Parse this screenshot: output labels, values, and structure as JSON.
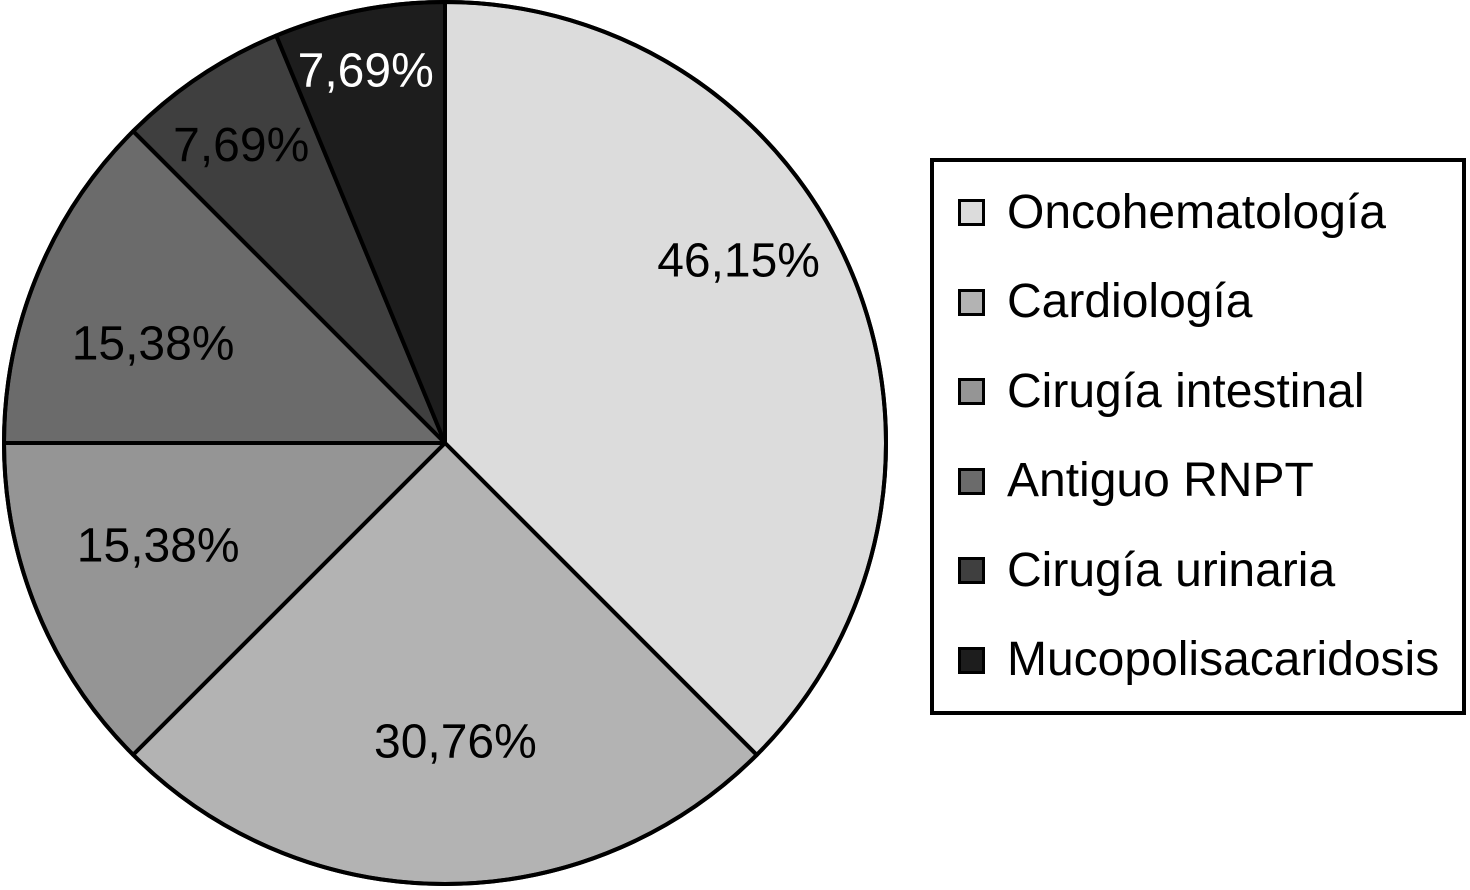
{
  "chart_data": {
    "type": "pie",
    "title": "",
    "legend_position": "right",
    "background_color": "#ffffff",
    "outline_color": "#000000",
    "categories": [
      "Oncohematología",
      "Cardiología",
      "Cirugía intestinal",
      "Antiguo RNPT",
      "Cirugía urinaria",
      "Mucopolisacaridosis"
    ],
    "values": [
      46.15,
      30.76,
      15.38,
      15.38,
      7.69,
      7.69
    ],
    "slice_labels": [
      "46,15%",
      "30,76%",
      "15,38%",
      "15,38%",
      "7,69%",
      "7,69%"
    ],
    "colors": [
      "#dcdcdc",
      "#b3b3b3",
      "#959595",
      "#6b6b6b",
      "#3f3f3f",
      "#1d1d1d"
    ],
    "label_colors": [
      "#000000",
      "#000000",
      "#000000",
      "#000000",
      "#000000",
      "#ffffff"
    ],
    "start_angle_deg": 0,
    "direction": "clockwise",
    "label_angles_deg": [
      58,
      178,
      250.5,
      289,
      325.7,
      348
    ],
    "label_radius_frac": [
      0.785,
      0.675,
      0.69,
      0.7,
      0.82,
      0.865
    ]
  }
}
